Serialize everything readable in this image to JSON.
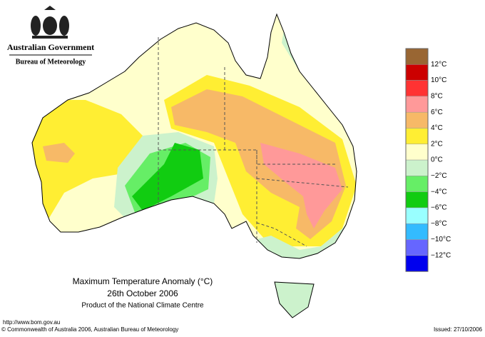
{
  "header": {
    "organisation": "Australian Government",
    "agency": "Bureau of Meteorology"
  },
  "legend": {
    "items": [
      {
        "label": null,
        "color": "#996633"
      },
      {
        "label": "12°C",
        "color": "#cc0000"
      },
      {
        "label": "10°C",
        "color": "#ff3333"
      },
      {
        "label": "8°C",
        "color": "#ff9999"
      },
      {
        "label": "6°C",
        "color": "#f7b967"
      },
      {
        "label": "4°C",
        "color": "#ffee33"
      },
      {
        "label": "2°C",
        "color": "#ffffcc"
      },
      {
        "label": "0°C",
        "color": "#ccf2cc"
      },
      {
        "label": "−2°C",
        "color": "#66ee66"
      },
      {
        "label": "−4°C",
        "color": "#11cc11"
      },
      {
        "label": "−6°C",
        "color": "#99ffff"
      },
      {
        "label": "−8°C",
        "color": "#33bbff"
      },
      {
        "label": "−10°C",
        "color": "#6666ff"
      },
      {
        "label": "−12°C",
        "color": "#0000ee"
      }
    ]
  },
  "title": {
    "line1": "Maximum Temperature Anomaly (°C)",
    "line2": "26th October 2006",
    "line3": "Product of the National Climate Centre"
  },
  "footer": {
    "url": "http://www.bom.gov.au",
    "copyright": "© Commonwealth of Australia 2006, Australian Bureau of Meteorology",
    "issued": "Issued: 27/10/2006"
  }
}
